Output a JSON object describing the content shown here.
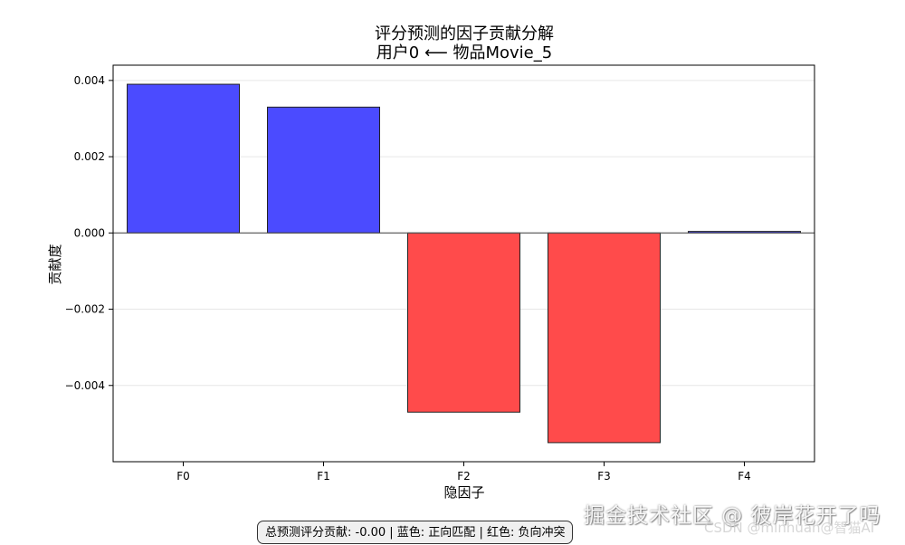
{
  "chart_data": {
    "type": "bar",
    "title": [
      "评分预测的因子贡献分解",
      "用户0 ⟵ 物品Movie_5"
    ],
    "xlabel": "隐因子",
    "ylabel": "贡献度",
    "categories": [
      "F0",
      "F1",
      "F2",
      "F3",
      "F4"
    ],
    "values": [
      0.0039,
      0.0033,
      -0.0047,
      -0.0055,
      4e-05
    ],
    "colors": [
      "#4b4bff",
      "#4b4bff",
      "#ff4b4b",
      "#ff4b4b",
      "#4b4bff"
    ],
    "ylim": [
      -0.006,
      0.0044
    ],
    "yticks": [
      0.004,
      0.002,
      0.0,
      -0.002,
      -0.004
    ],
    "ytick_labels": [
      "0.004",
      "0.002",
      "0.000",
      "−0.002",
      "−0.004"
    ],
    "grid": true,
    "zero_line": true
  },
  "footer": {
    "summary": "总预测评分贡献: -0.00 | 蓝色: 正向匹配 | 红色: 负向冲突"
  },
  "watermark": {
    "main": "掘金技术社区 @ 彼岸花开了吗",
    "sub": "CSDN @minhuan@智猫AI"
  }
}
